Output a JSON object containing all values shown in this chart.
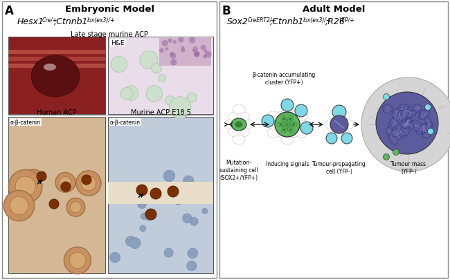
{
  "fig_width": 6.5,
  "fig_height": 4.06,
  "dpi": 100,
  "bg_color": "#ffffff",
  "border_color": "#888888",
  "panel_a_title": "Embryonic Model",
  "panel_b_title": "Adult Model",
  "panel_a_label": "A",
  "panel_b_label": "B",
  "late_stage_label": "Late stage murine ACP",
  "he_label": "H&E",
  "human_acp_label": "Human ACP",
  "murine_acp_label": "Murine ACP E18.5",
  "ab_catenin": "α-β-catenin",
  "beta_catenin_cluster": "β-catenin-accumulating\ncluster (YFP+)",
  "mutation_sustaining": "Mutation-\nsustaining cell\n(SOX2+/YFP+)",
  "inducing_signals": "Inducing signals",
  "tumour_propagating": "Tumour-propagating\ncell (YFP-)",
  "tumour_mass": "Tumour mass\n(YFP-)",
  "green_color": "#5cb85c",
  "dark_green_color": "#3a7d3a",
  "cyan_color": "#7dd8e8",
  "cyan_dark": "#50b8cc",
  "purple_color": "#5b5b9e",
  "dark_purple_color": "#3d3d7e",
  "light_gray": "#cccccc",
  "med_gray": "#aaaaaa",
  "cell_outline": "#333333",
  "tissue_gray": "#c8c8c8",
  "tissue_bg": "#d4d4d4"
}
